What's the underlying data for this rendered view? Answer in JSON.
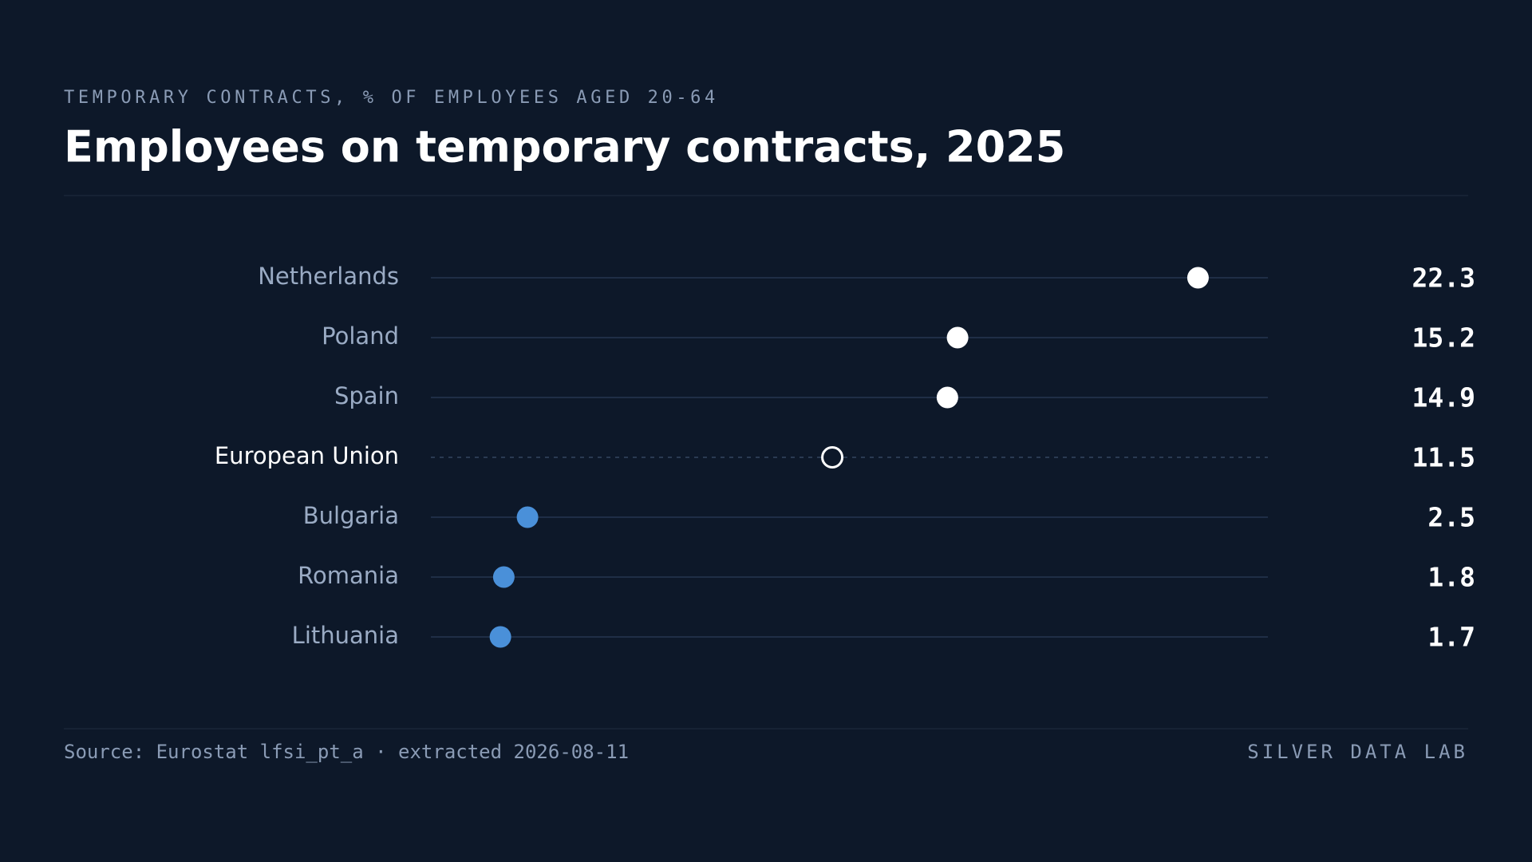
{
  "chart_data": {
    "type": "dot",
    "subtitle": "TEMPORARY CONTRACTS, % OF EMPLOYEES AGED 20-64",
    "title": "Employees on temporary contracts, 2025",
    "categories": [
      "Netherlands",
      "Poland",
      "Spain",
      "European Union",
      "Bulgaria",
      "Romania",
      "Lithuania"
    ],
    "values": [
      22.3,
      15.2,
      14.9,
      11.5,
      2.5,
      1.8,
      1.7
    ],
    "colors": [
      "#ffffff",
      "#ffffff",
      "#ffffff",
      "#ffffff",
      "#4a90d9",
      "#4a90d9",
      "#4a90d9"
    ],
    "marker_styles": [
      "filled",
      "filled",
      "filled",
      "hollow",
      "filled",
      "filled",
      "filled"
    ],
    "xlim": [
      0,
      25
    ],
    "source": "Source: Eurostat lfsi_pt_a · extracted 2026-08-11",
    "credit": "SILVER DATA LAB"
  }
}
